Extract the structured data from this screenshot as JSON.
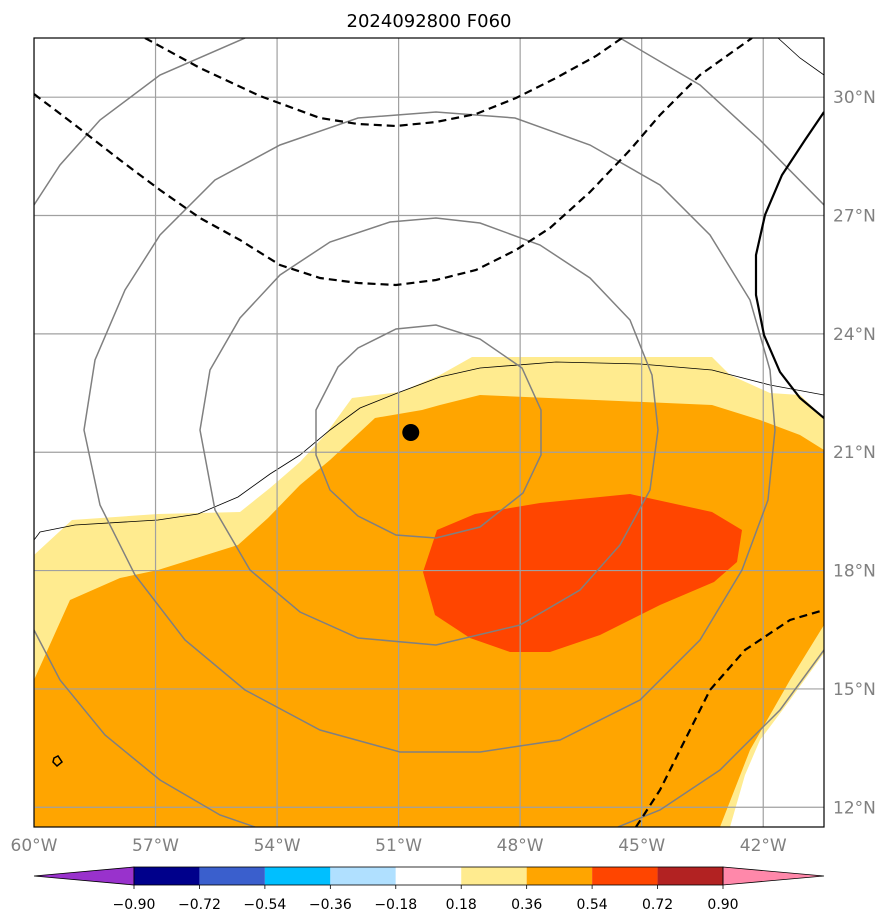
{
  "title": "2024092800 F060",
  "map": {
    "lon_range": [
      -60,
      -40.5
    ],
    "lat_range": [
      11.5,
      31.5
    ],
    "lat_ticks": [
      {
        "value": 30,
        "label": "30°N"
      },
      {
        "value": 27,
        "label": "27°N"
      },
      {
        "value": 24,
        "label": "24°N"
      },
      {
        "value": 21,
        "label": "21°N"
      },
      {
        "value": 18,
        "label": "18°N"
      },
      {
        "value": 15,
        "label": "15°N"
      },
      {
        "value": 12,
        "label": "12°N"
      }
    ],
    "lon_ticks": [
      {
        "value": -60,
        "label": "60°W"
      },
      {
        "value": -57,
        "label": "57°W"
      },
      {
        "value": -54,
        "label": "54°W"
      },
      {
        "value": -51,
        "label": "51°W"
      },
      {
        "value": -48,
        "label": "48°W"
      },
      {
        "value": -45,
        "label": "45°W"
      },
      {
        "value": -42,
        "label": "42°W"
      }
    ],
    "storm_center": {
      "lon": -50.7,
      "lat": 21.5
    }
  },
  "colorbar": {
    "levels": [
      "−0.90",
      "−0.72",
      "−0.54",
      "−0.36",
      "−0.18",
      "0.18",
      "0.36",
      "0.54",
      "0.72",
      "0.90"
    ],
    "colors": [
      "#9932cc",
      "#00008b",
      "#3a5fcd",
      "#00bfff",
      "#b0e0ff",
      "#ffffff",
      "#ffeb8f",
      "#ffa500",
      "#ff4500",
      "#b22222",
      "#ff88aa"
    ]
  },
  "colors": {
    "fill_light": "#ffeb8f",
    "fill_mid": "#ffa500",
    "fill_high": "#ff4500",
    "grid": "#a0a0a0",
    "circle": "#808080",
    "dashed": "#000000"
  }
}
